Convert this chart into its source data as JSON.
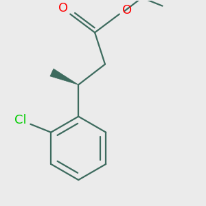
{
  "bg_color": "#ebebeb",
  "bond_color": "#3d6b5e",
  "o_color": "#ff0000",
  "cl_color": "#00cc00",
  "line_width": 1.6,
  "figsize": [
    3.0,
    3.0
  ],
  "dpi": 100,
  "xlim": [
    0.0,
    1.0
  ],
  "ylim": [
    0.0,
    1.0
  ]
}
